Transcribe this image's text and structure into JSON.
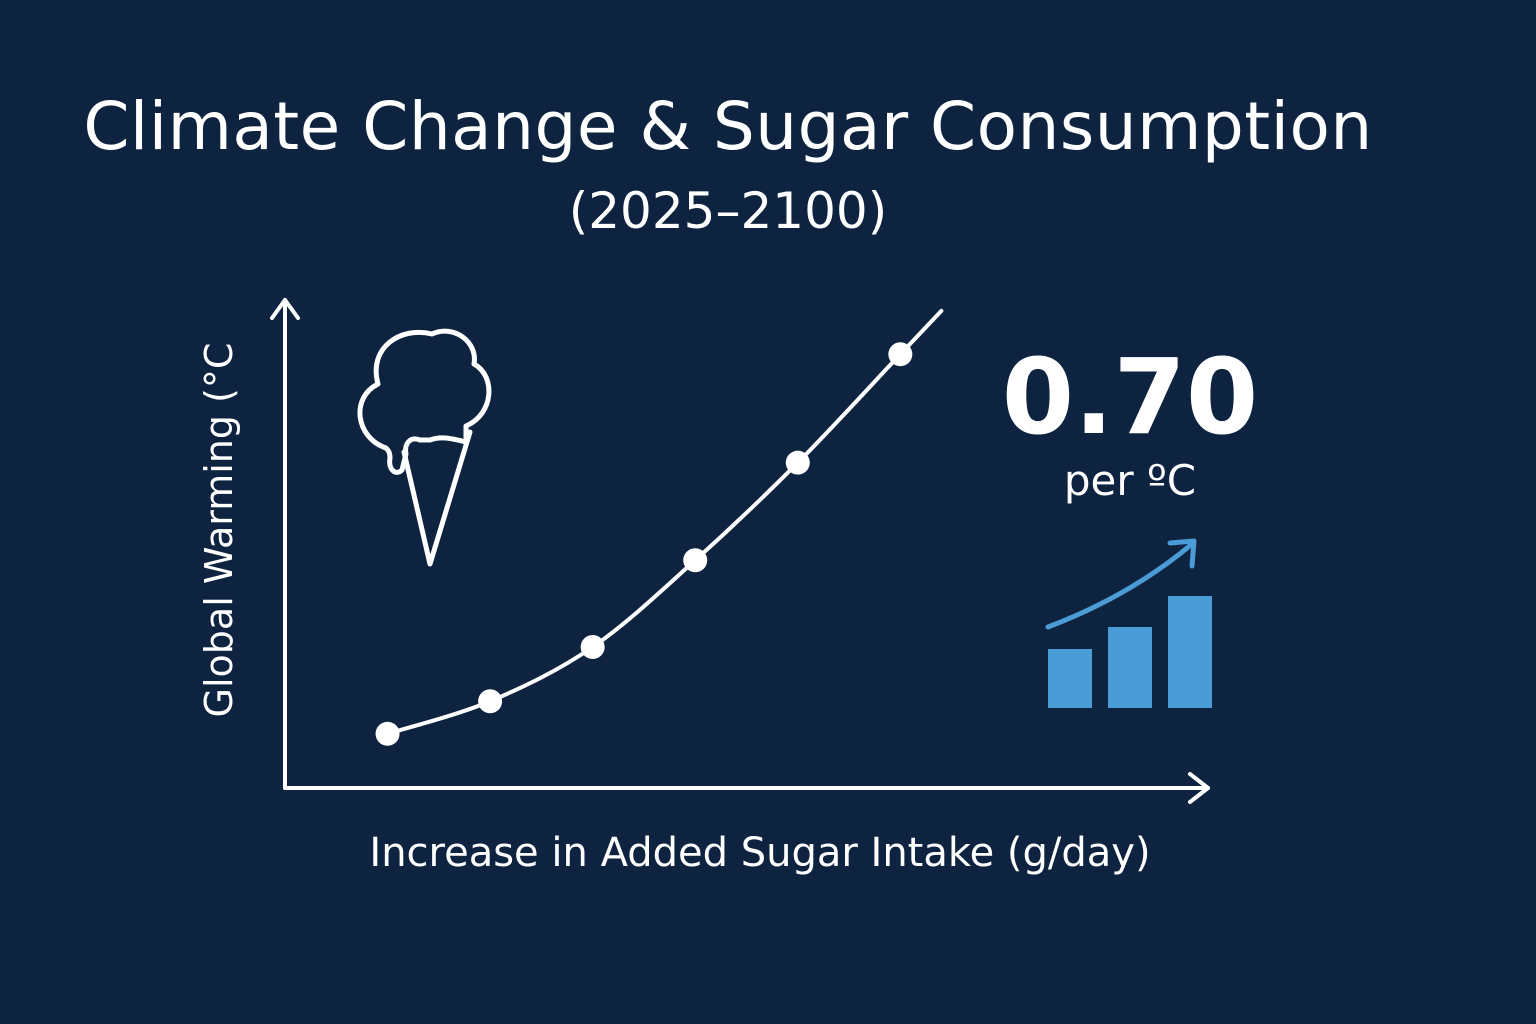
{
  "title": "Climate Change & Sugar Consumption",
  "subtitle": "(2025–2100)",
  "stat": {
    "value": "0.70",
    "unit": "per ºC"
  },
  "chart_data": {
    "type": "line",
    "title": "Climate Change & Sugar Consumption",
    "subtitle": "(2025–2100)",
    "xlabel": "Increase in Added Sugar Intake (g/day)",
    "ylabel": "Global Warming (°C",
    "x": [
      1,
      2,
      3,
      4,
      5,
      6
    ],
    "y": [
      0.5,
      0.8,
      1.3,
      2.1,
      3.0,
      4.0
    ],
    "xlim": [
      0,
      9
    ],
    "ylim": [
      0,
      4.5
    ],
    "line_extends_to": [
      6.4,
      4.4
    ],
    "grid": false,
    "legend": "none"
  },
  "icons": {
    "illustration": "ice-cream-cone-icon",
    "trend": "bar-chart-trend-up-icon"
  },
  "colors": {
    "background": "#0d2340",
    "foreground": "#ffffff",
    "accent": "#4a9bd6"
  }
}
